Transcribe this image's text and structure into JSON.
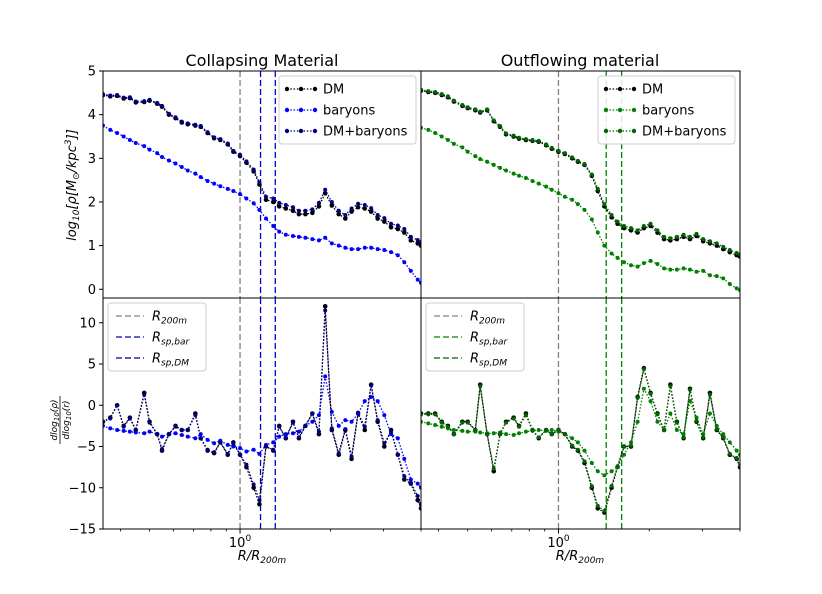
{
  "chart_data": [
    {
      "type": "line",
      "panel": "collapsing-density",
      "title": "Collapsing Material",
      "xlabel": "",
      "ylabel": "log10[ρ[M⊙/kpc3]]",
      "xscale": "log",
      "xlim": [
        0.35,
        4.0
      ],
      "ylim": [
        -0.2,
        5
      ],
      "yticks": [
        "0",
        "1",
        "2",
        "3",
        "4",
        "5"
      ],
      "vlines": [
        {
          "name": "R200m",
          "x": 1.0,
          "color": "#808080"
        },
        {
          "name": "Rsp,bar",
          "x": 1.17,
          "color": "#0000cc"
        },
        {
          "name": "Rsp,DM",
          "x": 1.31,
          "color": "#0000cc"
        }
      ],
      "legend": {
        "position": "top-right",
        "entries": [
          "DM",
          "baryons",
          "DM+baryons"
        ]
      },
      "x": [
        0.35,
        0.37,
        0.39,
        0.41,
        0.43,
        0.45,
        0.48,
        0.5,
        0.53,
        0.55,
        0.58,
        0.61,
        0.64,
        0.67,
        0.71,
        0.74,
        0.78,
        0.82,
        0.86,
        0.91,
        0.95,
        1.0,
        1.05,
        1.11,
        1.16,
        1.22,
        1.29,
        1.35,
        1.42,
        1.5,
        1.57,
        1.65,
        1.74,
        1.83,
        1.92,
        2.02,
        2.13,
        2.24,
        2.35,
        2.47,
        2.6,
        2.73,
        2.87,
        3.02,
        3.18,
        3.35,
        3.52,
        3.7,
        3.9,
        4.0
      ],
      "series": [
        {
          "name": "DM",
          "color": "#000000",
          "values": [
            4.45,
            4.42,
            4.43,
            4.37,
            4.38,
            4.28,
            4.29,
            4.32,
            4.25,
            4.18,
            4.0,
            3.92,
            3.82,
            3.78,
            3.75,
            3.72,
            3.58,
            3.46,
            3.42,
            3.32,
            3.15,
            3.05,
            2.9,
            2.7,
            2.4,
            2.05,
            2.0,
            1.9,
            1.85,
            1.8,
            1.72,
            1.72,
            1.75,
            1.9,
            2.2,
            1.92,
            1.72,
            1.62,
            1.78,
            1.88,
            1.85,
            1.78,
            1.62,
            1.55,
            1.42,
            1.38,
            1.3,
            1.12,
            1.05,
            1.0
          ]
        },
        {
          "name": "baryons",
          "color": "#0000ff",
          "values": [
            3.75,
            3.65,
            3.58,
            3.5,
            3.42,
            3.35,
            3.28,
            3.2,
            3.12,
            3.03,
            2.95,
            2.88,
            2.8,
            2.72,
            2.65,
            2.57,
            2.48,
            2.42,
            2.36,
            2.3,
            2.25,
            2.18,
            2.08,
            1.97,
            1.82,
            1.62,
            1.45,
            1.32,
            1.25,
            1.22,
            1.2,
            1.18,
            1.15,
            1.12,
            1.18,
            1.05,
            1.0,
            0.95,
            0.92,
            0.92,
            0.95,
            0.95,
            0.92,
            0.9,
            0.85,
            0.78,
            0.62,
            0.42,
            0.22,
            0.15
          ]
        },
        {
          "name": "DM+baryons",
          "color": "#000080",
          "values": [
            4.47,
            4.44,
            4.45,
            4.39,
            4.4,
            4.3,
            4.31,
            4.34,
            4.27,
            4.2,
            4.02,
            3.94,
            3.84,
            3.8,
            3.77,
            3.74,
            3.6,
            3.48,
            3.44,
            3.34,
            3.17,
            3.08,
            2.93,
            2.74,
            2.45,
            2.12,
            2.08,
            1.98,
            1.93,
            1.88,
            1.8,
            1.8,
            1.83,
            1.98,
            2.28,
            2.0,
            1.8,
            1.7,
            1.85,
            1.96,
            1.93,
            1.86,
            1.7,
            1.63,
            1.5,
            1.46,
            1.38,
            1.2,
            1.13,
            1.08
          ]
        }
      ]
    },
    {
      "type": "line",
      "panel": "outflowing-density",
      "title": "Outflowing material",
      "xlabel": "",
      "ylabel": "",
      "xscale": "log",
      "xlim": [
        0.35,
        4.0
      ],
      "ylim": [
        -0.2,
        5
      ],
      "vlines": [
        {
          "name": "R200m",
          "x": 1.0,
          "color": "#808080"
        },
        {
          "name": "Rsp,bar",
          "x": 1.44,
          "color": "#008000"
        },
        {
          "name": "Rsp,DM",
          "x": 1.62,
          "color": "#008000"
        }
      ],
      "legend": {
        "position": "top-right",
        "entries": [
          "DM",
          "baryons",
          "DM+baryons"
        ]
      },
      "x": [
        0.35,
        0.37,
        0.39,
        0.41,
        0.43,
        0.45,
        0.48,
        0.5,
        0.53,
        0.55,
        0.58,
        0.61,
        0.64,
        0.67,
        0.71,
        0.74,
        0.78,
        0.82,
        0.86,
        0.91,
        0.95,
        1.0,
        1.05,
        1.11,
        1.16,
        1.22,
        1.29,
        1.35,
        1.42,
        1.5,
        1.57,
        1.65,
        1.74,
        1.83,
        1.92,
        2.02,
        2.13,
        2.24,
        2.35,
        2.47,
        2.6,
        2.73,
        2.87,
        3.02,
        3.18,
        3.35,
        3.52,
        3.7,
        3.9,
        4.0
      ],
      "series": [
        {
          "name": "DM",
          "color": "#000000",
          "values": [
            4.55,
            4.52,
            4.5,
            4.45,
            4.4,
            4.3,
            4.2,
            4.15,
            4.1,
            4.05,
            4.1,
            3.85,
            3.72,
            3.55,
            3.5,
            3.45,
            3.42,
            3.4,
            3.38,
            3.3,
            3.22,
            3.15,
            3.1,
            3.0,
            2.92,
            2.85,
            2.6,
            2.25,
            1.9,
            1.65,
            1.5,
            1.4,
            1.35,
            1.3,
            1.4,
            1.45,
            1.3,
            1.15,
            1.12,
            1.15,
            1.2,
            1.15,
            1.22,
            1.1,
            1.05,
            1.0,
            0.92,
            0.85,
            0.78,
            0.75
          ]
        },
        {
          "name": "baryons",
          "color": "#008000",
          "values": [
            3.7,
            3.65,
            3.58,
            3.5,
            3.42,
            3.33,
            3.25,
            3.15,
            3.05,
            2.98,
            2.92,
            2.85,
            2.78,
            2.72,
            2.65,
            2.6,
            2.55,
            2.48,
            2.42,
            2.35,
            2.28,
            2.2,
            2.12,
            2.05,
            1.95,
            1.82,
            1.6,
            1.3,
            1.0,
            0.82,
            0.72,
            0.62,
            0.55,
            0.52,
            0.6,
            0.65,
            0.58,
            0.48,
            0.45,
            0.45,
            0.48,
            0.45,
            0.4,
            0.42,
            0.32,
            0.3,
            0.25,
            0.12,
            0.02,
            -0.02
          ]
        },
        {
          "name": "DM+baryons",
          "color": "#006400",
          "values": [
            4.57,
            4.54,
            4.52,
            4.47,
            4.42,
            4.32,
            4.22,
            4.17,
            4.12,
            4.07,
            4.12,
            3.87,
            3.74,
            3.57,
            3.52,
            3.47,
            3.44,
            3.42,
            3.4,
            3.32,
            3.24,
            3.17,
            3.12,
            3.02,
            2.94,
            2.87,
            2.63,
            2.3,
            1.95,
            1.7,
            1.55,
            1.45,
            1.4,
            1.35,
            1.45,
            1.5,
            1.35,
            1.2,
            1.17,
            1.2,
            1.25,
            1.2,
            1.27,
            1.15,
            1.1,
            1.05,
            0.97,
            0.9,
            0.83,
            0.8
          ]
        }
      ]
    },
    {
      "type": "line",
      "panel": "collapsing-slope",
      "title": "",
      "xlabel": "R/R200m",
      "ylabel": "dlog10(ρ) / dlog10(r)",
      "xscale": "log",
      "xlim": [
        0.35,
        4.0
      ],
      "ylim": [
        -15,
        13
      ],
      "yticks": [
        "−15",
        "−10",
        "−5",
        "0",
        "5",
        "10"
      ],
      "xtick_label": "10^0",
      "vlines": [
        {
          "name": "R200m",
          "x": 1.0,
          "color": "#808080"
        },
        {
          "name": "Rsp,bar",
          "x": 1.17,
          "color": "#0000cc"
        },
        {
          "name": "Rsp,DM",
          "x": 1.31,
          "color": "#0000cc"
        }
      ],
      "legend": {
        "position": "top-left",
        "entries": [
          "R200m",
          "Rsp,bar",
          "Rsp,DM"
        ]
      },
      "x": [
        0.35,
        0.37,
        0.39,
        0.41,
        0.43,
        0.45,
        0.48,
        0.5,
        0.53,
        0.55,
        0.58,
        0.61,
        0.64,
        0.67,
        0.71,
        0.74,
        0.78,
        0.82,
        0.86,
        0.91,
        0.95,
        1.0,
        1.05,
        1.11,
        1.16,
        1.22,
        1.29,
        1.35,
        1.42,
        1.5,
        1.57,
        1.65,
        1.74,
        1.83,
        1.92,
        2.02,
        2.13,
        2.24,
        2.35,
        2.47,
        2.6,
        2.73,
        2.87,
        3.02,
        3.18,
        3.35,
        3.52,
        3.7,
        3.9,
        4.0
      ],
      "series": [
        {
          "name": "DM",
          "color": "#000000",
          "values": [
            -2.0,
            -1.5,
            0.0,
            -2.5,
            -1.5,
            -3.0,
            1.5,
            -2.0,
            -3.5,
            -5.5,
            -3.5,
            -2.5,
            -3.0,
            -3.0,
            -1.0,
            -4.0,
            -5.5,
            -5.8,
            -4.5,
            -6.0,
            -4.5,
            -6.0,
            -7.5,
            -10.0,
            -12.0,
            -5.0,
            -5.5,
            -2.5,
            -4.0,
            -2.0,
            -4.0,
            -2.5,
            -1.0,
            -3.5,
            12.0,
            -3.0,
            -6.0,
            -3.0,
            -6.5,
            -1.0,
            -3.0,
            2.5,
            -2.0,
            -5.0,
            -3.0,
            -6.0,
            -9.0,
            -9.5,
            -11.5,
            -12.5
          ]
        },
        {
          "name": "baryons",
          "color": "#0000ff",
          "values": [
            -2.5,
            -2.8,
            -3.0,
            -3.1,
            -3.2,
            -3.3,
            -3.4,
            -3.2,
            -3.5,
            -3.8,
            -3.5,
            -3.4,
            -3.6,
            -3.8,
            -4.0,
            -3.5,
            -4.2,
            -4.6,
            -4.3,
            -4.8,
            -5.0,
            -5.2,
            -5.6,
            -5.4,
            -5.9,
            -4.8,
            -4.5,
            -3.8,
            -3.5,
            -3.4,
            -3.2,
            -2.5,
            -2.0,
            -1.2,
            3.5,
            -0.8,
            -2.5,
            -1.8,
            -2.0,
            -1.0,
            0.5,
            1.0,
            0.5,
            -1.2,
            -3.5,
            -4.0,
            -6.5,
            -9.0,
            -9.5,
            -10.0
          ]
        },
        {
          "name": "DM+baryons",
          "color": "#000080",
          "values": [
            -2.0,
            -1.6,
            0.0,
            -2.6,
            -1.6,
            -3.0,
            1.3,
            -2.1,
            -3.5,
            -5.3,
            -3.5,
            -2.6,
            -3.0,
            -3.0,
            -1.2,
            -4.0,
            -5.4,
            -5.7,
            -4.5,
            -5.9,
            -4.6,
            -6.0,
            -7.2,
            -9.6,
            -11.5,
            -5.0,
            -5.4,
            -2.6,
            -4.0,
            -2.1,
            -3.9,
            -2.5,
            -1.0,
            -3.2,
            11.5,
            -2.8,
            -5.8,
            -2.9,
            -6.2,
            -0.9,
            -2.6,
            2.4,
            -1.8,
            -4.6,
            -3.2,
            -6.0,
            -8.6,
            -9.4,
            -11.0,
            -12.0
          ]
        }
      ]
    },
    {
      "type": "line",
      "panel": "outflowing-slope",
      "title": "",
      "xlabel": "R/R200m",
      "ylabel": "",
      "xscale": "log",
      "xlim": [
        0.35,
        4.0
      ],
      "ylim": [
        -15,
        13
      ],
      "xtick_label": "10^0",
      "vlines": [
        {
          "name": "R200m",
          "x": 1.0,
          "color": "#808080"
        },
        {
          "name": "Rsp,bar",
          "x": 1.44,
          "color": "#008000"
        },
        {
          "name": "Rsp,DM",
          "x": 1.62,
          "color": "#008000"
        }
      ],
      "legend": {
        "position": "top-left",
        "entries": [
          "R200m",
          "Rsp,bar",
          "Rsp,DM"
        ]
      },
      "x": [
        0.35,
        0.37,
        0.39,
        0.41,
        0.43,
        0.45,
        0.48,
        0.5,
        0.53,
        0.55,
        0.58,
        0.61,
        0.64,
        0.67,
        0.71,
        0.74,
        0.78,
        0.82,
        0.86,
        0.91,
        0.95,
        1.0,
        1.05,
        1.11,
        1.16,
        1.22,
        1.29,
        1.35,
        1.42,
        1.5,
        1.57,
        1.65,
        1.74,
        1.83,
        1.92,
        2.02,
        2.13,
        2.24,
        2.35,
        2.47,
        2.6,
        2.73,
        2.87,
        3.02,
        3.18,
        3.35,
        3.52,
        3.7,
        3.9,
        4.0
      ],
      "series": [
        {
          "name": "DM",
          "color": "#000000",
          "values": [
            -1.0,
            -1.0,
            -1.0,
            -2.0,
            -2.5,
            -3.5,
            -2.0,
            -2.0,
            -3.0,
            2.5,
            -3.5,
            -8.0,
            -3.5,
            -2.0,
            -1.5,
            -2.5,
            -1.0,
            -3.0,
            -4.0,
            -3.0,
            -3.5,
            -3.0,
            -3.5,
            -5.0,
            -5.5,
            -7.0,
            -10.0,
            -12.5,
            -13.0,
            -10.0,
            -7.5,
            -5.0,
            -5.0,
            1.0,
            4.5,
            1.5,
            -1.0,
            -3.0,
            2.5,
            -2.0,
            -4.0,
            2.0,
            -2.0,
            -4.0,
            1.5,
            -3.0,
            -4.0,
            -6.0,
            -6.5,
            -7.5
          ]
        },
        {
          "name": "baryons",
          "color": "#008000",
          "values": [
            -2.0,
            -2.2,
            -2.4,
            -2.6,
            -2.8,
            -3.0,
            -3.1,
            -3.2,
            -3.2,
            -3.3,
            -3.4,
            -3.4,
            -3.3,
            -3.5,
            -3.6,
            -3.4,
            -3.2,
            -3.1,
            -3.0,
            -3.1,
            -3.0,
            -3.2,
            -3.5,
            -4.0,
            -4.5,
            -5.5,
            -7.0,
            -8.0,
            -8.5,
            -8.0,
            -7.5,
            -6.0,
            -4.5,
            -2.0,
            2.0,
            0.5,
            -2.0,
            -3.0,
            -1.0,
            -3.0,
            -3.5,
            0.5,
            -1.5,
            -3.5,
            -1.0,
            -2.5,
            -3.5,
            -4.5,
            -5.5,
            -6.0
          ]
        },
        {
          "name": "DM+baryons",
          "color": "#006400",
          "values": [
            -1.1,
            -1.1,
            -1.1,
            -2.1,
            -2.6,
            -3.5,
            -2.1,
            -2.1,
            -3.0,
            2.3,
            -3.5,
            -7.7,
            -3.5,
            -2.1,
            -1.6,
            -2.6,
            -1.2,
            -3.0,
            -3.9,
            -3.0,
            -3.5,
            -3.0,
            -3.5,
            -4.9,
            -5.4,
            -6.8,
            -9.8,
            -12.2,
            -12.8,
            -9.8,
            -7.4,
            -5.0,
            -4.9,
            0.9,
            4.4,
            1.4,
            -1.1,
            -3.0,
            2.3,
            -2.1,
            -3.9,
            1.9,
            -1.9,
            -3.9,
            1.3,
            -2.9,
            -3.9,
            -5.9,
            -6.4,
            -7.3
          ]
        }
      ]
    }
  ]
}
